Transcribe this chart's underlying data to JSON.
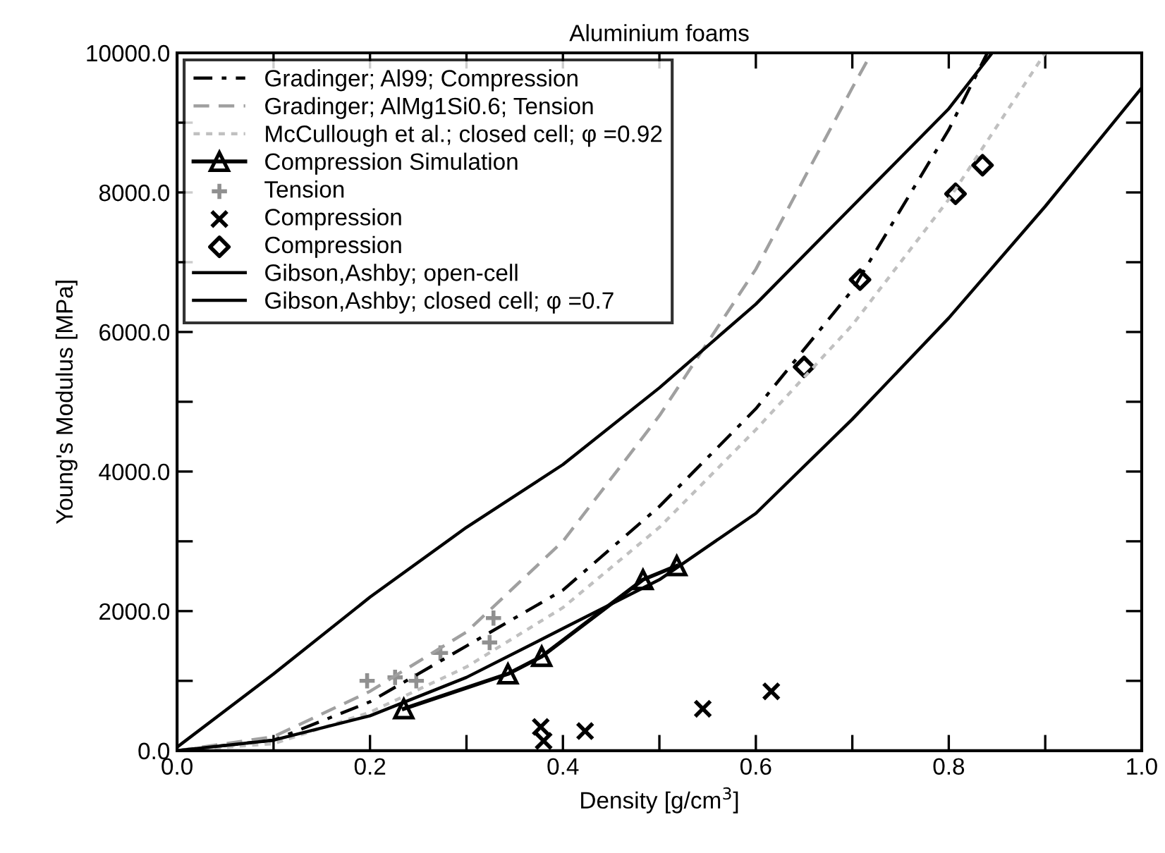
{
  "chart_data": {
    "type": "line",
    "title": "Aluminium foams",
    "xlabel": "Density [g/cm$^{3}$]",
    "ylabel": "Young's Modulus [MPa]",
    "xlim": [
      0.0,
      1.0
    ],
    "ylim": [
      0.0,
      10000.0
    ],
    "xticks": [
      {
        "value": 0.0,
        "label": "0.0"
      },
      {
        "value": 0.1,
        "label": null
      },
      {
        "value": 0.2,
        "label": "0.2"
      },
      {
        "value": 0.3,
        "label": null
      },
      {
        "value": 0.4,
        "label": "0.4"
      },
      {
        "value": 0.5,
        "label": null
      },
      {
        "value": 0.6,
        "label": "0.6"
      },
      {
        "value": 0.7,
        "label": null
      },
      {
        "value": 0.8,
        "label": "0.8"
      },
      {
        "value": 0.9,
        "label": null
      },
      {
        "value": 1.0,
        "label": "1.0"
      }
    ],
    "yticks": [
      {
        "value": 0,
        "label": "0.0"
      },
      {
        "value": 1000,
        "label": null
      },
      {
        "value": 2000,
        "label": "2000.0"
      },
      {
        "value": 3000,
        "label": null
      },
      {
        "value": 4000,
        "label": "4000.0"
      },
      {
        "value": 5000,
        "label": null
      },
      {
        "value": 6000,
        "label": "6000.0"
      },
      {
        "value": 7000,
        "label": null
      },
      {
        "value": 8000,
        "label": "8000.0"
      },
      {
        "value": 9000,
        "label": null
      },
      {
        "value": 10000,
        "label": "10000.0"
      }
    ],
    "grid": false,
    "legend": "top left",
    "series": [
      {
        "name": "Gradinger; Al99; Compression",
        "color": "#000000",
        "line_style": "dashdot",
        "marker": "none",
        "x": [
          0.0,
          0.1,
          0.2,
          0.3,
          0.4,
          0.5,
          0.6,
          0.7,
          0.8,
          0.84
        ],
        "values": [
          0,
          150,
          700,
          1500,
          2300,
          3500,
          4900,
          6600,
          8900,
          10000
        ]
      },
      {
        "name": "Gradinger; AlMg1Si0.6; Tension",
        "color": "#a0a0a0",
        "line_style": "dashed",
        "marker": "none",
        "x": [
          0.0,
          0.1,
          0.2,
          0.3,
          0.4,
          0.5,
          0.6,
          0.7,
          0.72
        ],
        "values": [
          0,
          200,
          850,
          1700,
          3000,
          4800,
          6900,
          9500,
          10000
        ]
      },
      {
        "name": "McCullough et al.; closed cell; φ =0.92",
        "color": "#c0c0c0",
        "line_style": "dotted",
        "marker": "none",
        "x": [
          0.0,
          0.1,
          0.2,
          0.3,
          0.4,
          0.5,
          0.6,
          0.7,
          0.8,
          0.9
        ],
        "values": [
          0,
          100,
          550,
          1200,
          2050,
          3200,
          4600,
          6100,
          7900,
          10000
        ]
      },
      {
        "name": "Compression Simulation",
        "color": "#000000",
        "line_style": "solid",
        "marker": "triangle",
        "x": [
          0.235,
          0.343,
          0.378,
          0.483,
          0.518
        ],
        "values": [
          600,
          1100,
          1350,
          2450,
          2650
        ]
      },
      {
        "name": "Tension",
        "type": "scatter",
        "color": "#909090",
        "marker": "plus",
        "x": [
          0.197,
          0.226,
          0.248,
          0.273,
          0.324,
          0.328
        ],
        "values": [
          1000,
          1050,
          1000,
          1400,
          1550,
          1900
        ]
      },
      {
        "name": "Compression",
        "type": "scatter",
        "color": "#000000",
        "marker": "cross",
        "x": [
          0.377,
          0.38,
          0.423,
          0.545,
          0.616
        ],
        "values": [
          340,
          140,
          280,
          600,
          850
        ]
      },
      {
        "name": "Compression",
        "type": "scatter",
        "color": "#000000",
        "marker": "diamond",
        "x": [
          0.65,
          0.708,
          0.807,
          0.835
        ],
        "values": [
          5500,
          6750,
          7980,
          8390
        ]
      },
      {
        "name": "Gibson,Ashby; open-cell",
        "color": "#000000",
        "line_style": "solid",
        "marker": "none",
        "x": [
          0.0,
          0.1,
          0.2,
          0.3,
          0.4,
          0.5,
          0.6,
          0.7,
          0.8,
          0.845
        ],
        "values": [
          50,
          1100,
          2200,
          3200,
          4100,
          5200,
          6400,
          7800,
          9200,
          10000
        ]
      },
      {
        "name": "Gibson,Ashby; closed cell; φ =0.7",
        "color": "#000000",
        "line_style": "solid",
        "marker": "none",
        "x": [
          0.0,
          0.1,
          0.2,
          0.3,
          0.4,
          0.5,
          0.6,
          0.7,
          0.8,
          0.9,
          1.0
        ],
        "values": [
          0,
          150,
          500,
          1050,
          1750,
          2450,
          3400,
          4750,
          6200,
          7800,
          9500
        ]
      }
    ]
  }
}
